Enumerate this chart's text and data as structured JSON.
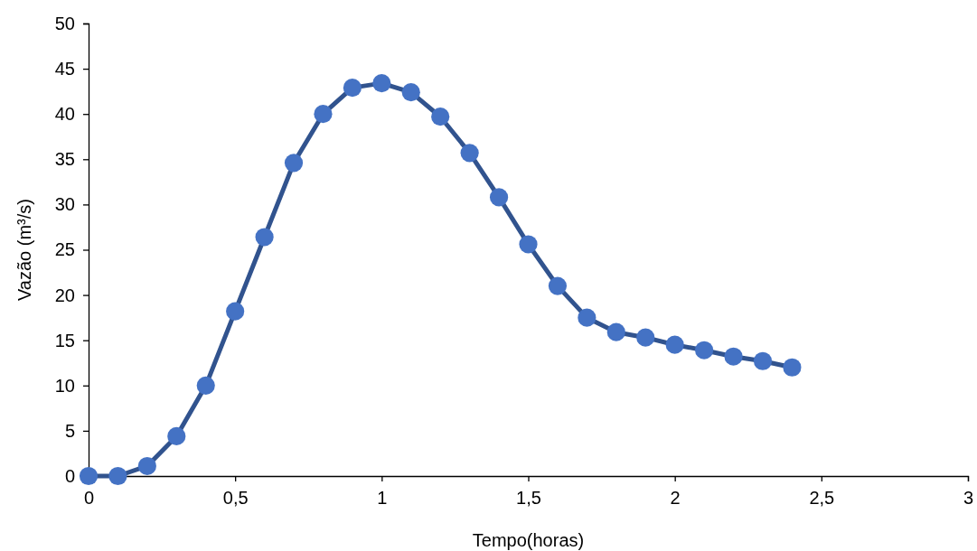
{
  "chart_data": {
    "type": "line",
    "xlabel": "Tempo(horas)",
    "ylabel": "Vazão (m³/s)",
    "x": [
      0,
      0.1,
      0.2,
      0.3,
      0.4,
      0.5,
      0.6,
      0.7,
      0.8,
      0.9,
      1.0,
      1.1,
      1.2,
      1.3,
      1.4,
      1.5,
      1.6,
      1.7,
      1.8,
      1.9,
      2.0,
      2.1,
      2.2,
      2.3,
      2.4
    ],
    "series": [
      {
        "color": "#4472c4",
        "values": [
          0,
          0,
          1.1,
          4.4,
          10.0,
          18.2,
          26.4,
          34.6,
          40.0,
          42.9,
          43.4,
          42.4,
          39.7,
          35.7,
          30.8,
          25.6,
          21.0,
          17.5,
          15.9,
          15.3,
          14.5,
          13.9,
          13.2,
          12.7,
          12.0
        ]
      }
    ],
    "xlim": [
      0,
      3
    ],
    "xticks": [
      {
        "value": 0,
        "label": "0"
      },
      {
        "value": 0.5,
        "label": "0,5"
      },
      {
        "value": 1,
        "label": "1"
      },
      {
        "value": 1.5,
        "label": "1,5"
      },
      {
        "value": 2,
        "label": "2"
      },
      {
        "value": 2.5,
        "label": "2,5"
      },
      {
        "value": 3,
        "label": "3"
      }
    ],
    "ylim": [
      0,
      50
    ],
    "yticks": [
      0,
      5,
      10,
      15,
      20,
      25,
      30,
      35,
      40,
      45,
      50
    ],
    "grid": false,
    "marker": "circle",
    "line_style": "solid"
  }
}
